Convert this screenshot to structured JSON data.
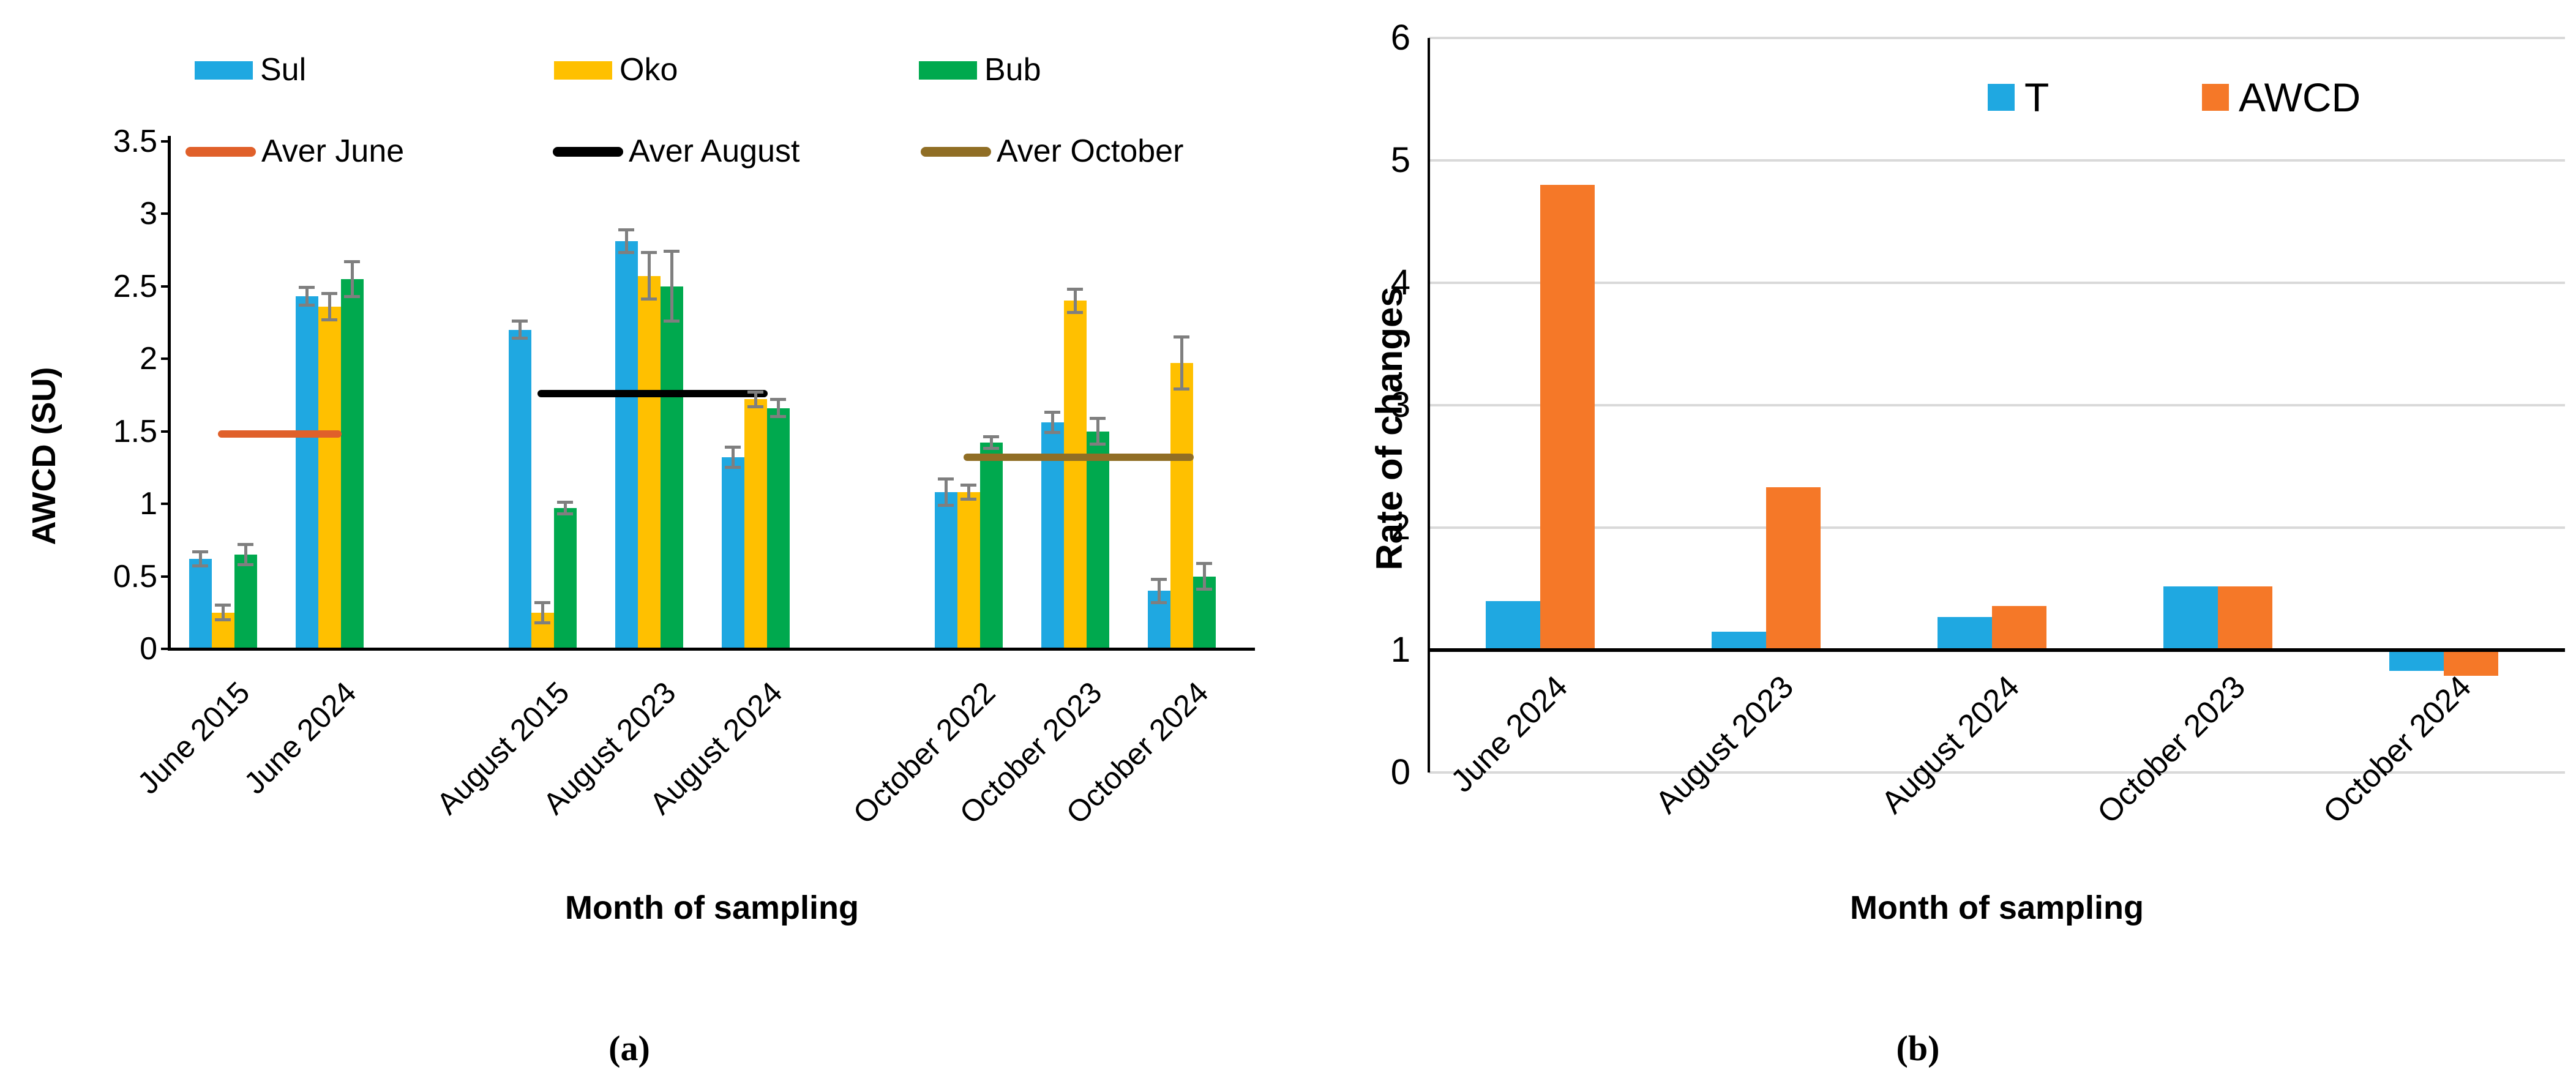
{
  "figure": {
    "caption_a": "(a)",
    "caption_b": "(b)",
    "background": "#ffffff"
  },
  "chart_data": [
    {
      "id": "a",
      "type": "bar",
      "title": "",
      "ylabel": "AWCD (SU)",
      "xlabel": "Month of sampling",
      "ylim": [
        0,
        3.5
      ],
      "yticks": [
        "0",
        "0.5",
        "1",
        "1.5",
        "2",
        "2.5",
        "3",
        "3.5"
      ],
      "grid": false,
      "legend_position": "top-two-rows",
      "error_bar_color": "#7F7F7F",
      "axis_color": "#000000",
      "categories": [
        "June 2015",
        "June 2024",
        "August 2015",
        "August 2023",
        "August 2024",
        "October 2022",
        "October 2023",
        "October 2024"
      ],
      "series": [
        {
          "name": "Sul",
          "color": "#1FA8E1",
          "values": [
            0.62,
            2.43,
            2.2,
            2.81,
            1.32,
            1.08,
            1.56,
            0.4
          ],
          "errors": [
            0.05,
            0.06,
            0.06,
            0.08,
            0.07,
            0.09,
            0.07,
            0.08
          ]
        },
        {
          "name": "Oko",
          "color": "#FFC000",
          "values": [
            0.25,
            2.36,
            0.25,
            2.57,
            1.72,
            1.08,
            2.4,
            1.97
          ],
          "errors": [
            0.05,
            0.09,
            0.07,
            0.16,
            0.05,
            0.05,
            0.08,
            0.18
          ]
        },
        {
          "name": "Bub",
          "color": "#00A94E",
          "values": [
            0.65,
            2.55,
            0.97,
            2.5,
            1.66,
            1.42,
            1.5,
            0.5
          ],
          "errors": [
            0.07,
            0.12,
            0.04,
            0.24,
            0.06,
            0.04,
            0.09,
            0.09
          ]
        }
      ],
      "avg_lines": [
        {
          "name": "Aver June",
          "color": "#E0602A",
          "value": 1.48,
          "from_group": 0,
          "to_group": 1
        },
        {
          "name": "Aver August",
          "color": "#000000",
          "value": 1.76,
          "from_group": 2,
          "to_group": 4
        },
        {
          "name": "Aver October",
          "color": "#906E25",
          "value": 1.32,
          "from_group": 5,
          "to_group": 7
        }
      ]
    },
    {
      "id": "b",
      "type": "bar",
      "title": "",
      "ylabel": "Rate of changes",
      "xlabel": "Month of sampling",
      "ylim": [
        0,
        6
      ],
      "yticks": [
        "0",
        "1",
        "2",
        "3",
        "4",
        "5",
        "6"
      ],
      "grid": true,
      "grid_color": "#D9D9D9",
      "axis_cross_value": 1,
      "axis_color": "#000000",
      "legend_position": "top-center-inside",
      "categories": [
        "June 2024",
        "August 2023",
        "August 2024",
        "October 2023",
        "October 2024"
      ],
      "series": [
        {
          "name": "T",
          "color": "#1FA8E1",
          "values": [
            1.4,
            1.15,
            1.27,
            1.52,
            0.83
          ]
        },
        {
          "name": "AWCD",
          "color": "#F57828",
          "values": [
            4.8,
            2.33,
            1.36,
            1.52,
            0.79
          ]
        }
      ]
    }
  ]
}
